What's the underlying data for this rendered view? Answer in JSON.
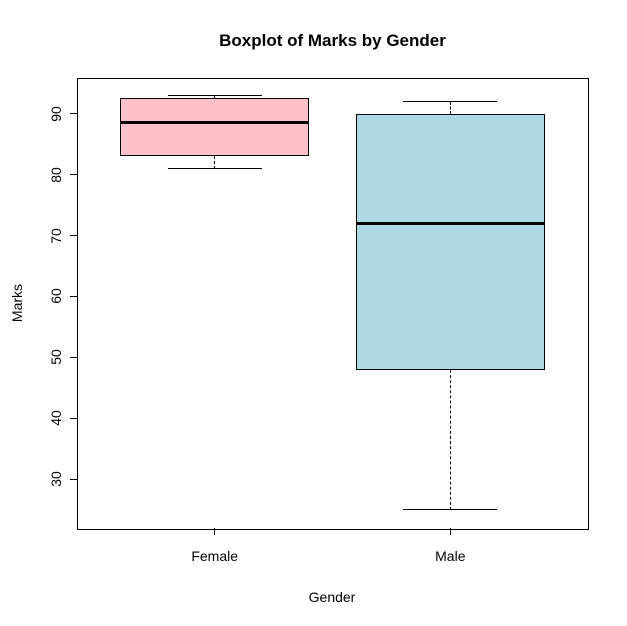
{
  "chart_data": {
    "type": "boxplot",
    "title": "Boxplot of Marks by Gender",
    "xlabel": "Gender",
    "ylabel": "Marks",
    "categories": [
      "Female",
      "Male"
    ],
    "series": [
      {
        "name": "Female",
        "min": 81,
        "q1": 83,
        "median": 88.5,
        "q3": 92.5,
        "max": 93,
        "fill": "#FFC0CB"
      },
      {
        "name": "Male",
        "min": 25,
        "q1": 48,
        "median": 72,
        "q3": 90,
        "max": 92,
        "fill": "#ADD8E6"
      }
    ],
    "yticks": [
      30,
      40,
      50,
      60,
      70,
      80,
      90
    ],
    "ylim": [
      22,
      95.7
    ],
    "xlim": [
      0.42,
      2.58
    ],
    "positions": [
      1,
      2
    ],
    "box_width": 0.8,
    "cap_width": 0.4,
    "grid": false,
    "legend": "none",
    "line_color": "#000000",
    "whisker_style": "dashed",
    "background": "#FFFFFF"
  }
}
